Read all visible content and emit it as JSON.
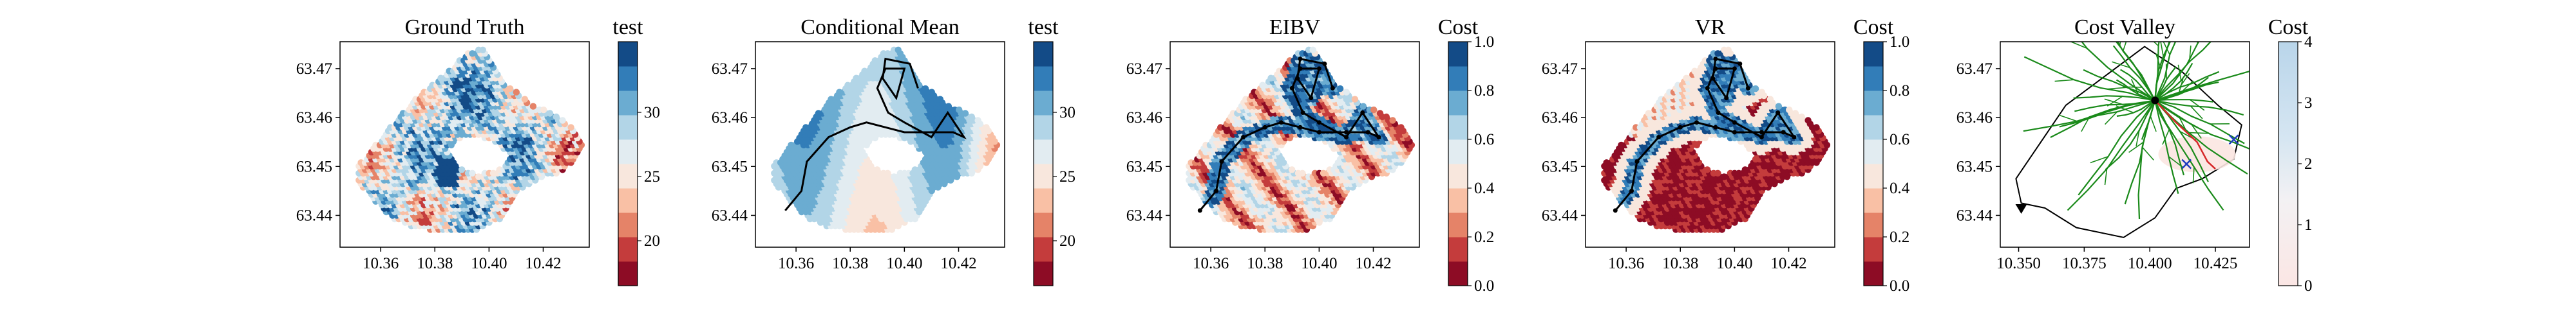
{
  "figure": {
    "panels": [
      {
        "id": "ground-truth",
        "title": "Ground Truth",
        "colorbar_label": "test"
      },
      {
        "id": "conditional-mean",
        "title": "Conditional Mean",
        "colorbar_label": "test"
      },
      {
        "id": "eibv",
        "title": "EIBV",
        "colorbar_label": "Cost"
      },
      {
        "id": "vr",
        "title": "VR",
        "colorbar_label": "Cost"
      },
      {
        "id": "cost-valley",
        "title": "Cost Valley",
        "colorbar_label": "Cost"
      }
    ]
  },
  "chart_data": [
    {
      "type": "heatmap",
      "title": "Ground Truth",
      "colormap": "RdBu",
      "colors": {
        "low": "#67001f",
        "mid": "#f2f2f2",
        "high": "#053061"
      },
      "xlim": [
        10.345,
        10.437
      ],
      "ylim": [
        63.4335,
        63.4755
      ],
      "x_ticks": [
        "10.36",
        "10.38",
        "10.40",
        "10.42"
      ],
      "y_ticks": [
        "63.44",
        "63.45",
        "63.46",
        "63.47"
      ],
      "colorbar": {
        "label": "test",
        "range": [
          16.5,
          35.5
        ],
        "ticks": [
          "20",
          "25",
          "30"
        ],
        "levels": 10
      },
      "path": []
    },
    {
      "type": "heatmap",
      "title": "Conditional Mean",
      "colormap": "RdBu",
      "colors": {
        "low": "#67001f",
        "mid": "#f2f2f2",
        "high": "#053061"
      },
      "xlim": [
        10.345,
        10.437
      ],
      "ylim": [
        63.4335,
        63.4755
      ],
      "x_ticks": [
        "10.36",
        "10.38",
        "10.40",
        "10.42"
      ],
      "y_ticks": [
        "63.44",
        "63.45",
        "63.46",
        "63.47"
      ],
      "colorbar": {
        "label": "test",
        "range": [
          16.5,
          35.5
        ],
        "ticks": [
          "20",
          "25",
          "30"
        ],
        "levels": 10
      },
      "path": [
        [
          10.356,
          63.441
        ],
        [
          10.362,
          63.445
        ],
        [
          10.364,
          63.451
        ],
        [
          10.372,
          63.456
        ],
        [
          10.38,
          63.458
        ],
        [
          10.386,
          63.459
        ],
        [
          10.393,
          63.458
        ],
        [
          10.4,
          63.457
        ],
        [
          10.41,
          63.457
        ],
        [
          10.418,
          63.457
        ],
        [
          10.422,
          63.456
        ],
        [
          10.416,
          63.461
        ],
        [
          10.41,
          63.456
        ],
        [
          10.4,
          63.459
        ],
        [
          10.394,
          63.461
        ],
        [
          10.39,
          63.466
        ],
        [
          10.393,
          63.47
        ],
        [
          10.4,
          63.47
        ],
        [
          10.397,
          63.464
        ],
        [
          10.392,
          63.468
        ],
        [
          10.393,
          63.472
        ],
        [
          10.402,
          63.471
        ],
        [
          10.405,
          63.466
        ]
      ]
    },
    {
      "type": "heatmap",
      "title": "EIBV",
      "colormap": "RdBu",
      "colors": {
        "low": "#67001f",
        "mid": "#f2f2f2",
        "high": "#053061"
      },
      "xlim": [
        10.345,
        10.437
      ],
      "ylim": [
        63.4335,
        63.4755
      ],
      "x_ticks": [
        "10.36",
        "10.38",
        "10.40",
        "10.42"
      ],
      "y_ticks": [
        "63.44",
        "63.45",
        "63.46",
        "63.47"
      ],
      "colorbar": {
        "label": "Cost",
        "range": [
          0,
          1
        ],
        "ticks": [
          "0.0",
          "0.2",
          "0.4",
          "0.6",
          "0.8",
          "1.0"
        ],
        "levels": 10
      },
      "path": [
        [
          10.356,
          63.441
        ],
        [
          10.362,
          63.445
        ],
        [
          10.364,
          63.451
        ],
        [
          10.372,
          63.456
        ],
        [
          10.38,
          63.458
        ],
        [
          10.386,
          63.459
        ],
        [
          10.393,
          63.458
        ],
        [
          10.4,
          63.457
        ],
        [
          10.41,
          63.457
        ],
        [
          10.418,
          63.457
        ],
        [
          10.422,
          63.456
        ],
        [
          10.416,
          63.461
        ],
        [
          10.41,
          63.456
        ],
        [
          10.4,
          63.459
        ],
        [
          10.394,
          63.461
        ],
        [
          10.39,
          63.466
        ],
        [
          10.393,
          63.47
        ],
        [
          10.4,
          63.47
        ],
        [
          10.397,
          63.464
        ],
        [
          10.392,
          63.468
        ],
        [
          10.393,
          63.472
        ],
        [
          10.402,
          63.471
        ],
        [
          10.405,
          63.466
        ]
      ]
    },
    {
      "type": "heatmap",
      "title": "VR",
      "colormap": "RdBu",
      "colors": {
        "low": "#67001f",
        "mid": "#f2f2f2",
        "high": "#053061"
      },
      "xlim": [
        10.345,
        10.437
      ],
      "ylim": [
        63.4335,
        63.4755
      ],
      "x_ticks": [
        "10.36",
        "10.38",
        "10.40",
        "10.42"
      ],
      "y_ticks": [
        "63.44",
        "63.45",
        "63.46",
        "63.47"
      ],
      "colorbar": {
        "label": "Cost",
        "range": [
          0,
          1
        ],
        "ticks": [
          "0.0",
          "0.2",
          "0.4",
          "0.6",
          "0.8",
          "1.0"
        ],
        "levels": 10
      },
      "path": [
        [
          10.356,
          63.441
        ],
        [
          10.362,
          63.445
        ],
        [
          10.364,
          63.451
        ],
        [
          10.372,
          63.456
        ],
        [
          10.38,
          63.458
        ],
        [
          10.386,
          63.459
        ],
        [
          10.393,
          63.458
        ],
        [
          10.4,
          63.457
        ],
        [
          10.41,
          63.457
        ],
        [
          10.418,
          63.457
        ],
        [
          10.422,
          63.456
        ],
        [
          10.416,
          63.461
        ],
        [
          10.41,
          63.456
        ],
        [
          10.4,
          63.459
        ],
        [
          10.394,
          63.461
        ],
        [
          10.39,
          63.466
        ],
        [
          10.393,
          63.47
        ],
        [
          10.4,
          63.47
        ],
        [
          10.397,
          63.464
        ],
        [
          10.392,
          63.468
        ],
        [
          10.393,
          63.472
        ],
        [
          10.402,
          63.471
        ],
        [
          10.405,
          63.466
        ]
      ]
    },
    {
      "type": "heatmap",
      "title": "Cost Valley",
      "colormap": "Reds",
      "colors": {
        "low": "#fff5f0",
        "high": "#053061",
        "tree": "#1a8a1a",
        "route": "#d62728",
        "candidate": "#1f3fbf"
      },
      "xlim": [
        10.343,
        10.438
      ],
      "ylim": [
        63.4335,
        63.4755
      ],
      "x_ticks": [
        "10.350",
        "10.375",
        "10.400",
        "10.425"
      ],
      "y_ticks": [
        "63.44",
        "63.45",
        "63.46",
        "63.47"
      ],
      "colorbar": {
        "label": "Cost",
        "range": [
          0,
          4
        ],
        "ticks": [
          "0",
          "1",
          "2",
          "3",
          "4"
        ],
        "levels": 1
      },
      "tree_root": [
        10.402,
        63.4635
      ],
      "start": [
        10.351,
        63.4415
      ],
      "route": [
        [
          10.402,
          63.4635
        ],
        [
          10.41,
          63.459
        ],
        [
          10.418,
          63.455
        ],
        [
          10.422,
          63.451
        ],
        [
          10.425,
          63.4495
        ]
      ],
      "candidates": [
        [
          10.414,
          63.4505
        ],
        [
          10.432,
          63.4555
        ]
      ]
    }
  ]
}
